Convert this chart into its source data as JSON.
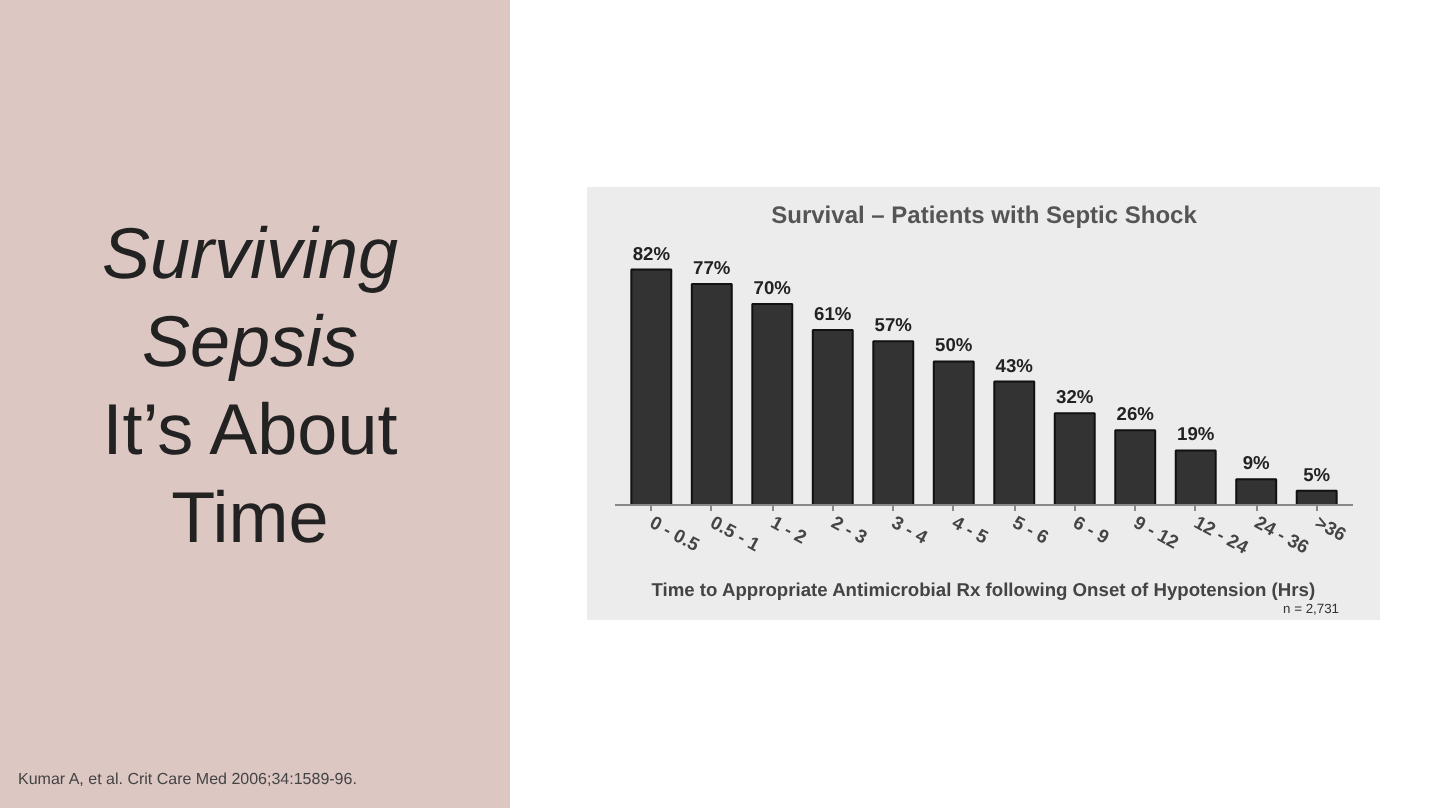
{
  "chart_data": {
    "type": "bar",
    "title": "Survival – Patients with Septic Shock",
    "xlabel": "Time to Appropriate Antimicrobial Rx following Onset of Hypotension (Hrs)",
    "categories": [
      "0 - 0.5",
      "0.5 - 1",
      "1 - 2",
      "2 - 3",
      "3 - 4",
      "4 - 5",
      "5 - 6",
      "6 - 9",
      "9 - 12",
      "12 - 24",
      "24 - 36",
      ">36"
    ],
    "values": [
      82,
      77,
      70,
      61,
      57,
      50,
      43,
      32,
      26,
      19,
      9,
      5
    ],
    "value_labels": [
      "82%",
      "77%",
      "70%",
      "61%",
      "57%",
      "50%",
      "43%",
      "32%",
      "26%",
      "19%",
      "9%",
      "5%"
    ],
    "color": "#333333",
    "annotations": [
      "Surviving Sepsis",
      "It’s About Time",
      "n = 2,731",
      "Kumar A, et al. Crit Care Med 2006;34:1589-96."
    ]
  }
}
